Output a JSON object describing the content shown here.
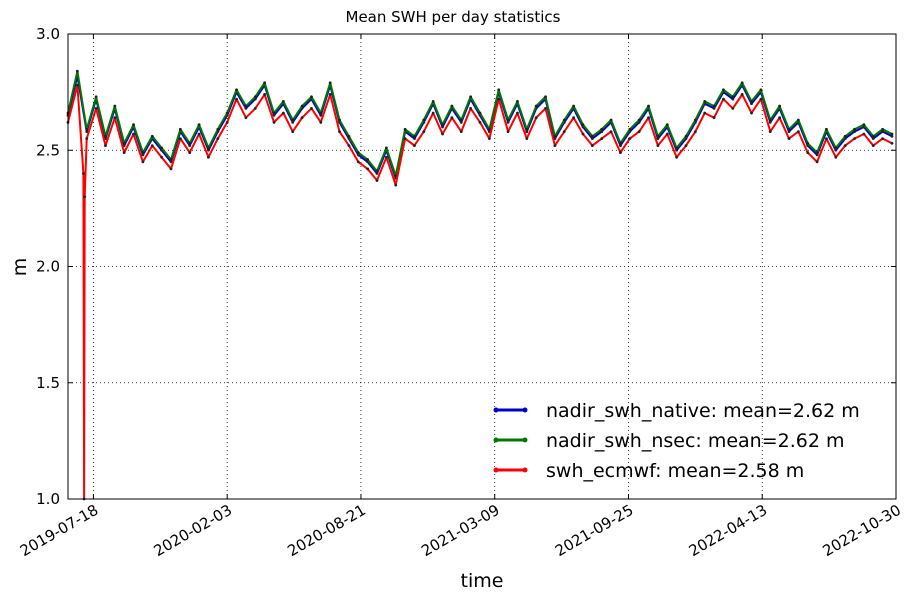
{
  "chart_data": {
    "type": "line",
    "title": "Mean SWH per day statistics",
    "xlabel": "time",
    "ylabel": "m",
    "x_range": [
      "2019-06-10",
      "2022-10-30"
    ],
    "ylim": [
      1.0,
      3.0
    ],
    "x_ticks": [
      "2019-07-18",
      "2020-02-03",
      "2020-08-21",
      "2021-03-09",
      "2021-09-25",
      "2022-04-13",
      "2022-10-30"
    ],
    "y_ticks": [
      "1.0",
      "1.5",
      "2.0",
      "2.5",
      "3.0"
    ],
    "y_tick_values": [
      1.0,
      1.5,
      2.0,
      2.5,
      3.0
    ],
    "grid": true,
    "legend_position": "lower-right",
    "series": [
      {
        "name": "nadir_swh_native: mean=2.62 m",
        "color": "#0000cc",
        "dates": [
          "2019-06-10",
          "2019-06-24",
          "2019-07-08",
          "2019-07-22",
          "2019-08-05",
          "2019-08-19",
          "2019-09-02",
          "2019-09-16",
          "2019-09-30",
          "2019-10-14",
          "2019-10-28",
          "2019-11-11",
          "2019-11-25",
          "2019-12-09",
          "2019-12-23",
          "2020-01-06",
          "2020-01-20",
          "2020-02-03",
          "2020-02-17",
          "2020-03-02",
          "2020-03-16",
          "2020-03-30",
          "2020-04-13",
          "2020-04-27",
          "2020-05-11",
          "2020-05-25",
          "2020-06-08",
          "2020-06-22",
          "2020-07-06",
          "2020-07-20",
          "2020-08-03",
          "2020-08-17",
          "2020-08-31",
          "2020-09-14",
          "2020-09-28",
          "2020-10-12",
          "2020-10-26",
          "2020-11-09",
          "2020-11-23",
          "2020-12-07",
          "2020-12-21",
          "2021-01-04",
          "2021-01-18",
          "2021-02-01",
          "2021-02-15",
          "2021-03-01",
          "2021-03-15",
          "2021-03-29",
          "2021-04-12",
          "2021-04-26",
          "2021-05-10",
          "2021-05-24",
          "2021-06-07",
          "2021-06-21",
          "2021-07-05",
          "2021-07-19",
          "2021-08-02",
          "2021-08-16",
          "2021-08-30",
          "2021-09-13",
          "2021-09-27",
          "2021-10-11",
          "2021-10-25",
          "2021-11-08",
          "2021-11-22",
          "2021-12-06",
          "2021-12-20",
          "2022-01-03",
          "2022-01-17",
          "2022-01-31",
          "2022-02-14",
          "2022-02-28",
          "2022-03-14",
          "2022-03-28",
          "2022-04-11",
          "2022-04-25",
          "2022-05-09",
          "2022-05-23",
          "2022-06-06",
          "2022-06-20",
          "2022-07-04",
          "2022-07-18",
          "2022-08-01",
          "2022-08-15",
          "2022-08-29",
          "2022-09-12",
          "2022-09-26",
          "2022-10-10",
          "2022-10-24"
        ],
        "values": [
          2.65,
          2.82,
          2.58,
          2.72,
          2.55,
          2.68,
          2.52,
          2.6,
          2.48,
          2.55,
          2.5,
          2.45,
          2.58,
          2.52,
          2.6,
          2.5,
          2.58,
          2.65,
          2.75,
          2.68,
          2.72,
          2.78,
          2.65,
          2.7,
          2.62,
          2.68,
          2.72,
          2.65,
          2.78,
          2.62,
          2.55,
          2.48,
          2.45,
          2.4,
          2.5,
          2.38,
          2.58,
          2.55,
          2.62,
          2.7,
          2.6,
          2.68,
          2.62,
          2.72,
          2.65,
          2.58,
          2.75,
          2.62,
          2.7,
          2.58,
          2.68,
          2.72,
          2.55,
          2.62,
          2.68,
          2.6,
          2.55,
          2.58,
          2.62,
          2.52,
          2.58,
          2.62,
          2.68,
          2.55,
          2.6,
          2.5,
          2.55,
          2.62,
          2.7,
          2.68,
          2.75,
          2.72,
          2.78,
          2.7,
          2.75,
          2.62,
          2.68,
          2.58,
          2.62,
          2.52,
          2.48,
          2.58,
          2.5,
          2.55,
          2.58,
          2.6,
          2.55,
          2.58,
          2.56
        ]
      },
      {
        "name": "nadir_swh_nsec: mean=2.62 m",
        "color": "#007700",
        "dates": [
          "2019-06-10",
          "2019-06-24",
          "2019-07-08",
          "2019-07-22",
          "2019-08-05",
          "2019-08-19",
          "2019-09-02",
          "2019-09-16",
          "2019-09-30",
          "2019-10-14",
          "2019-10-28",
          "2019-11-11",
          "2019-11-25",
          "2019-12-09",
          "2019-12-23",
          "2020-01-06",
          "2020-01-20",
          "2020-02-03",
          "2020-02-17",
          "2020-03-02",
          "2020-03-16",
          "2020-03-30",
          "2020-04-13",
          "2020-04-27",
          "2020-05-11",
          "2020-05-25",
          "2020-06-08",
          "2020-06-22",
          "2020-07-06",
          "2020-07-20",
          "2020-08-03",
          "2020-08-17",
          "2020-08-31",
          "2020-09-14",
          "2020-09-28",
          "2020-10-12",
          "2020-10-26",
          "2020-11-09",
          "2020-11-23",
          "2020-12-07",
          "2020-12-21",
          "2021-01-04",
          "2021-01-18",
          "2021-02-01",
          "2021-02-15",
          "2021-03-01",
          "2021-03-15",
          "2021-03-29",
          "2021-04-12",
          "2021-04-26",
          "2021-05-10",
          "2021-05-24",
          "2021-06-07",
          "2021-06-21",
          "2021-07-05",
          "2021-07-19",
          "2021-08-02",
          "2021-08-16",
          "2021-08-30",
          "2021-09-13",
          "2021-09-27",
          "2021-10-11",
          "2021-10-25",
          "2021-11-08",
          "2021-11-22",
          "2021-12-06",
          "2021-12-20",
          "2022-01-03",
          "2022-01-17",
          "2022-01-31",
          "2022-02-14",
          "2022-02-28",
          "2022-03-14",
          "2022-03-28",
          "2022-04-11",
          "2022-04-25",
          "2022-05-09",
          "2022-05-23",
          "2022-06-06",
          "2022-06-20",
          "2022-07-04",
          "2022-07-18",
          "2022-08-01",
          "2022-08-15",
          "2022-08-29",
          "2022-09-12",
          "2022-09-26",
          "2022-10-10",
          "2022-10-24"
        ],
        "values": [
          2.66,
          2.84,
          2.59,
          2.73,
          2.56,
          2.69,
          2.53,
          2.61,
          2.49,
          2.56,
          2.51,
          2.46,
          2.59,
          2.53,
          2.61,
          2.51,
          2.59,
          2.66,
          2.76,
          2.69,
          2.73,
          2.79,
          2.66,
          2.71,
          2.63,
          2.69,
          2.73,
          2.66,
          2.79,
          2.63,
          2.56,
          2.49,
          2.46,
          2.41,
          2.51,
          2.39,
          2.59,
          2.56,
          2.63,
          2.71,
          2.61,
          2.69,
          2.63,
          2.73,
          2.66,
          2.59,
          2.76,
          2.63,
          2.71,
          2.59,
          2.69,
          2.73,
          2.56,
          2.63,
          2.69,
          2.61,
          2.56,
          2.59,
          2.63,
          2.53,
          2.59,
          2.63,
          2.69,
          2.56,
          2.61,
          2.51,
          2.56,
          2.63,
          2.71,
          2.69,
          2.76,
          2.73,
          2.79,
          2.71,
          2.76,
          2.63,
          2.69,
          2.59,
          2.63,
          2.53,
          2.49,
          2.59,
          2.51,
          2.56,
          2.59,
          2.61,
          2.56,
          2.59,
          2.57
        ]
      },
      {
        "name": "swh_ecmwf: mean=2.58 m",
        "color": "#ff0000",
        "dates": [
          "2019-06-10",
          "2019-06-24",
          "2019-07-03",
          "2019-07-04",
          "2019-07-05",
          "2019-07-08",
          "2019-07-22",
          "2019-08-05",
          "2019-08-19",
          "2019-09-02",
          "2019-09-16",
          "2019-09-30",
          "2019-10-14",
          "2019-10-28",
          "2019-11-11",
          "2019-11-25",
          "2019-12-09",
          "2019-12-23",
          "2020-01-06",
          "2020-01-20",
          "2020-02-03",
          "2020-02-17",
          "2020-03-02",
          "2020-03-16",
          "2020-03-30",
          "2020-04-13",
          "2020-04-27",
          "2020-05-11",
          "2020-05-25",
          "2020-06-08",
          "2020-06-22",
          "2020-07-06",
          "2020-07-20",
          "2020-08-03",
          "2020-08-17",
          "2020-08-31",
          "2020-09-14",
          "2020-09-28",
          "2020-10-12",
          "2020-10-26",
          "2020-11-09",
          "2020-11-23",
          "2020-12-07",
          "2020-12-21",
          "2021-01-04",
          "2021-01-18",
          "2021-02-01",
          "2021-02-15",
          "2021-03-01",
          "2021-03-15",
          "2021-03-29",
          "2021-04-12",
          "2021-04-26",
          "2021-05-10",
          "2021-05-24",
          "2021-06-07",
          "2021-06-21",
          "2021-07-05",
          "2021-07-19",
          "2021-08-02",
          "2021-08-16",
          "2021-08-30",
          "2021-09-13",
          "2021-09-27",
          "2021-10-11",
          "2021-10-25",
          "2021-11-08",
          "2021-11-22",
          "2021-12-06",
          "2021-12-20",
          "2022-01-03",
          "2022-01-17",
          "2022-01-31",
          "2022-02-14",
          "2022-02-28",
          "2022-03-14",
          "2022-03-28",
          "2022-04-11",
          "2022-04-25",
          "2022-05-09",
          "2022-05-23",
          "2022-06-06",
          "2022-06-20",
          "2022-07-04",
          "2022-07-18",
          "2022-08-01",
          "2022-08-15",
          "2022-08-29",
          "2022-09-12",
          "2022-09-26",
          "2022-10-10",
          "2022-10-24"
        ],
        "values": [
          2.62,
          2.78,
          2.4,
          1.0,
          2.3,
          2.55,
          2.68,
          2.52,
          2.64,
          2.49,
          2.57,
          2.45,
          2.52,
          2.47,
          2.42,
          2.55,
          2.49,
          2.57,
          2.47,
          2.55,
          2.62,
          2.72,
          2.64,
          2.68,
          2.74,
          2.62,
          2.66,
          2.58,
          2.64,
          2.68,
          2.62,
          2.74,
          2.58,
          2.52,
          2.45,
          2.42,
          2.37,
          2.47,
          2.35,
          2.55,
          2.52,
          2.58,
          2.66,
          2.57,
          2.64,
          2.58,
          2.68,
          2.62,
          2.55,
          2.72,
          2.58,
          2.66,
          2.55,
          2.64,
          2.68,
          2.52,
          2.58,
          2.64,
          2.57,
          2.52,
          2.55,
          2.58,
          2.49,
          2.55,
          2.58,
          2.64,
          2.52,
          2.57,
          2.47,
          2.52,
          2.58,
          2.66,
          2.64,
          2.72,
          2.68,
          2.74,
          2.66,
          2.72,
          2.58,
          2.64,
          2.55,
          2.58,
          2.49,
          2.45,
          2.55,
          2.47,
          2.52,
          2.55,
          2.57,
          2.52,
          2.55,
          2.53
        ]
      }
    ]
  }
}
